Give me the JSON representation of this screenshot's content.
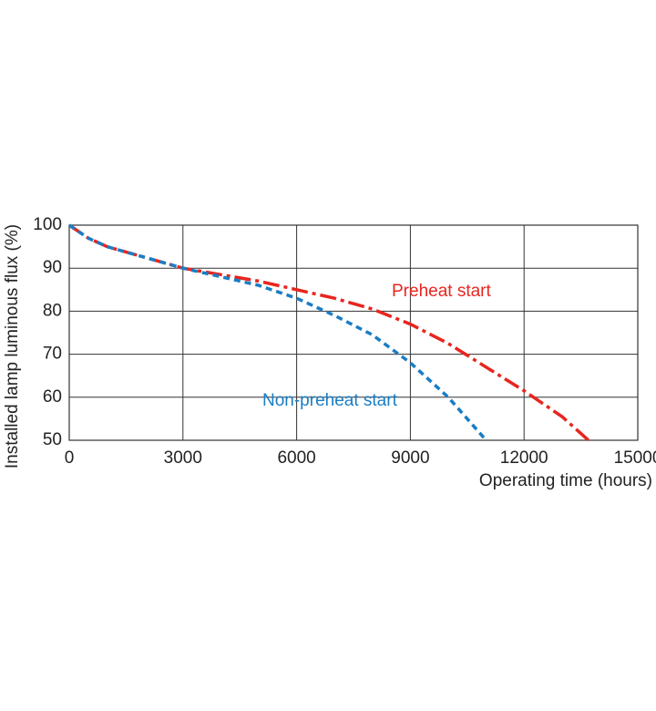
{
  "chart_data": {
    "type": "line",
    "x_label": "Operating time (hours)",
    "y_label": "Installed lamp luminous flux  (%)",
    "xlim": [
      0,
      15000
    ],
    "xticks": [
      0,
      3000,
      6000,
      9000,
      12000,
      15000
    ],
    "ylim": [
      50,
      100
    ],
    "yticks": [
      50,
      60,
      70,
      80,
      90,
      100
    ],
    "grid": true,
    "series": [
      {
        "name": "Preheat start",
        "color": "#e8251f",
        "linestyle": "dash-dot",
        "x": [
          0,
          500,
          1000,
          2000,
          3000,
          4000,
          5000,
          6000,
          7000,
          8000,
          9000,
          10000,
          11000,
          12000,
          13000,
          13700
        ],
        "values": [
          100,
          97,
          95,
          92.5,
          90,
          88.5,
          87,
          85,
          83,
          80.5,
          77,
          72.5,
          67,
          61.5,
          55.5,
          50
        ]
      },
      {
        "name": "Non-preheat start",
        "color": "#1a7dc4",
        "linestyle": "dashed",
        "x": [
          0,
          500,
          1000,
          2000,
          3000,
          4000,
          5000,
          6000,
          7000,
          8000,
          9000,
          10000,
          11000
        ],
        "values": [
          100,
          97,
          95,
          92.5,
          90,
          88,
          86,
          83,
          79,
          74.5,
          68,
          60,
          50
        ]
      }
    ]
  }
}
